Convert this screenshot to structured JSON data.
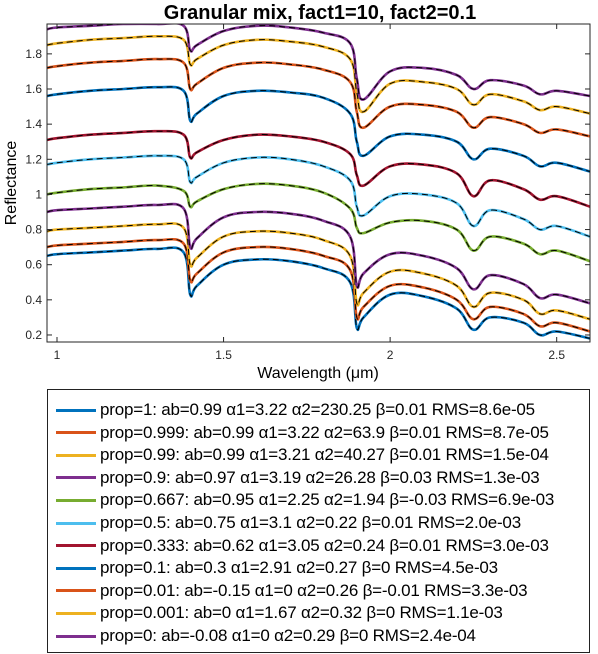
{
  "chart_data": {
    "type": "line",
    "title": "Granular mix, fact1=10, fact2=0.1",
    "xlabel": "Wavelength (μm)",
    "ylabel": "Reflectance",
    "xlim": [
      0.97,
      2.6
    ],
    "ylim": [
      0.16,
      1.97
    ],
    "xticks": [
      1,
      1.5,
      2,
      2.5
    ],
    "xtick_labels": [
      "1",
      "1.5",
      "2",
      "2.5"
    ],
    "yticks": [
      0.2,
      0.4,
      0.6,
      0.8,
      1.0,
      1.2,
      1.4,
      1.6,
      1.8
    ],
    "ytick_labels": [
      "0.2",
      "0.4",
      "0.6",
      "0.8",
      "1",
      "1.2",
      "1.4",
      "1.6",
      "1.8"
    ],
    "grid": false,
    "legend_position": "below",
    "model_overlay": "dashed black",
    "x": [
      0.97,
      1.0,
      1.1,
      1.2,
      1.3,
      1.38,
      1.4,
      1.42,
      1.5,
      1.6,
      1.7,
      1.8,
      1.88,
      1.9,
      1.92,
      2.0,
      2.1,
      2.2,
      2.25,
      2.3,
      2.4,
      2.45,
      2.5,
      2.6
    ],
    "series": [
      {
        "name": "prop=1: ab=0.99  α1=3.22  α2=230.25  β=0.01  RMS=8.6e-05",
        "color": "#0072BD",
        "values": [
          0.65,
          0.66,
          0.67,
          0.68,
          0.69,
          0.67,
          0.43,
          0.48,
          0.6,
          0.63,
          0.62,
          0.58,
          0.5,
          0.24,
          0.3,
          0.43,
          0.42,
          0.35,
          0.23,
          0.3,
          0.27,
          0.2,
          0.22,
          0.18
        ]
      },
      {
        "name": "prop=0.999: ab=0.99  α1=3.22  α2=63.9  β=0.01  RMS=8.7e-05",
        "color": "#D95319",
        "values": [
          0.7,
          0.71,
          0.72,
          0.73,
          0.74,
          0.72,
          0.51,
          0.55,
          0.67,
          0.7,
          0.69,
          0.65,
          0.57,
          0.3,
          0.36,
          0.48,
          0.47,
          0.4,
          0.29,
          0.36,
          0.32,
          0.25,
          0.27,
          0.22
        ]
      },
      {
        "name": "prop=0.99: ab=0.99  α1=3.21  α2=40.27  β=0.01  RMS=1.5e-04",
        "color": "#EDB120",
        "values": [
          0.79,
          0.8,
          0.81,
          0.82,
          0.83,
          0.81,
          0.6,
          0.64,
          0.76,
          0.79,
          0.78,
          0.74,
          0.65,
          0.38,
          0.44,
          0.56,
          0.55,
          0.48,
          0.36,
          0.44,
          0.4,
          0.32,
          0.34,
          0.29
        ]
      },
      {
        "name": "prop=0.9: ab=0.97  α1=3.19  α2=26.28  β=0.03  RMS=1.3e-03",
        "color": "#7E2F8E",
        "values": [
          0.9,
          0.91,
          0.92,
          0.93,
          0.94,
          0.92,
          0.7,
          0.75,
          0.87,
          0.9,
          0.89,
          0.85,
          0.76,
          0.48,
          0.55,
          0.66,
          0.65,
          0.58,
          0.46,
          0.54,
          0.49,
          0.41,
          0.43,
          0.38
        ]
      },
      {
        "name": "prop=0.667: ab=0.95  α1=2.25  α2=1.94  β=-0.03  RMS=6.9e-03",
        "color": "#77AC30",
        "values": [
          1.0,
          1.01,
          1.03,
          1.04,
          1.05,
          1.02,
          0.93,
          0.96,
          1.03,
          1.06,
          1.05,
          1.01,
          0.92,
          0.81,
          0.78,
          0.84,
          0.85,
          0.8,
          0.68,
          0.76,
          0.72,
          0.66,
          0.68,
          0.62
        ]
      },
      {
        "name": "prop=0.5: ab=0.75  α1=3.1  α2=0.22  β=0.01  RMS=2.0e-03",
        "color": "#4DBEEE",
        "values": [
          1.17,
          1.18,
          1.2,
          1.21,
          1.22,
          1.2,
          1.07,
          1.1,
          1.18,
          1.21,
          1.2,
          1.16,
          1.08,
          0.93,
          0.88,
          0.99,
          1.0,
          0.95,
          0.82,
          0.91,
          0.86,
          0.8,
          0.82,
          0.76
        ]
      },
      {
        "name": "prop=0.333: ab=0.62  α1=3.05  α2=0.24  β=0.01  RMS=3.0e-03",
        "color": "#A2142F",
        "values": [
          1.31,
          1.32,
          1.34,
          1.35,
          1.36,
          1.34,
          1.21,
          1.24,
          1.31,
          1.34,
          1.33,
          1.3,
          1.23,
          1.11,
          1.05,
          1.16,
          1.17,
          1.12,
          0.99,
          1.08,
          1.03,
          0.97,
          0.99,
          0.93
        ]
      },
      {
        "name": "prop=0.1: ab=0.3  α1=2.91  α2=0.27  β=0  RMS=4.5e-03",
        "color": "#0072BD",
        "values": [
          1.56,
          1.57,
          1.59,
          1.6,
          1.61,
          1.59,
          1.42,
          1.46,
          1.56,
          1.59,
          1.58,
          1.55,
          1.46,
          1.3,
          1.22,
          1.33,
          1.34,
          1.3,
          1.2,
          1.26,
          1.22,
          1.16,
          1.18,
          1.13
        ]
      },
      {
        "name": "prop=0.01: ab=-0.15  α1=0  α2=0.26  β=-0.01  RMS=3.3e-03",
        "color": "#D95319",
        "values": [
          1.72,
          1.73,
          1.75,
          1.76,
          1.77,
          1.75,
          1.6,
          1.63,
          1.72,
          1.75,
          1.74,
          1.71,
          1.64,
          1.47,
          1.38,
          1.5,
          1.51,
          1.47,
          1.38,
          1.44,
          1.4,
          1.35,
          1.37,
          1.33
        ]
      },
      {
        "name": "prop=0.001: ab=0  α1=1.67  α2=0.32  β=0  RMS=1.1e-03",
        "color": "#EDB120",
        "values": [
          1.85,
          1.86,
          1.88,
          1.89,
          1.9,
          1.88,
          1.74,
          1.77,
          1.85,
          1.88,
          1.87,
          1.84,
          1.77,
          1.58,
          1.47,
          1.63,
          1.64,
          1.6,
          1.51,
          1.57,
          1.53,
          1.48,
          1.5,
          1.46
        ]
      },
      {
        "name": "prop=0: ab=-0.08  α1=0  α2=0.29  β=0  RMS=2.4e-04",
        "color": "#7E2F8E",
        "values": [
          1.94,
          1.95,
          1.96,
          1.97,
          1.97,
          1.96,
          1.82,
          1.85,
          1.93,
          1.96,
          1.95,
          1.92,
          1.86,
          1.66,
          1.54,
          1.7,
          1.72,
          1.68,
          1.6,
          1.65,
          1.62,
          1.57,
          1.59,
          1.56
        ]
      }
    ]
  }
}
